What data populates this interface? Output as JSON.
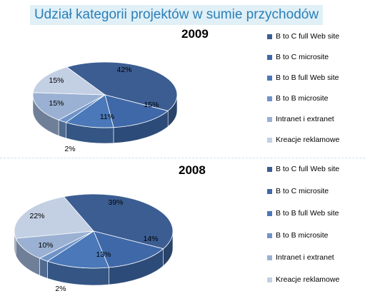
{
  "title": "Udział kategorii projektów w sumie przychodów",
  "colors": [
    "#3b5d92",
    "#3f68a8",
    "#4a78b8",
    "#6f94c8",
    "#9bb1d3",
    "#c3cfe3"
  ],
  "chart_data": [
    {
      "type": "pie",
      "title": "2009",
      "categories": [
        "B to C full Web site",
        "B to C microsite",
        "B to B full Web site",
        "B to B microsite",
        "Intranet i extranet",
        "Kreacje reklamowe"
      ],
      "values": [
        42,
        15,
        11,
        2,
        15,
        15
      ],
      "labels": [
        "42%",
        "15%",
        "11%",
        "2%",
        "15%",
        "15%"
      ],
      "legend": "right"
    },
    {
      "type": "pie",
      "title": "2008",
      "categories": [
        "B to C full Web site",
        "B to C microsite",
        "B to B full Web site",
        "B to B microsite",
        "Intranet i extranet",
        "Kreacje reklamowe"
      ],
      "values": [
        39,
        14,
        13,
        2,
        10,
        22
      ],
      "labels": [
        "39%",
        "14%",
        "13%",
        "2%",
        "10%",
        "22%"
      ],
      "legend": "right"
    }
  ]
}
